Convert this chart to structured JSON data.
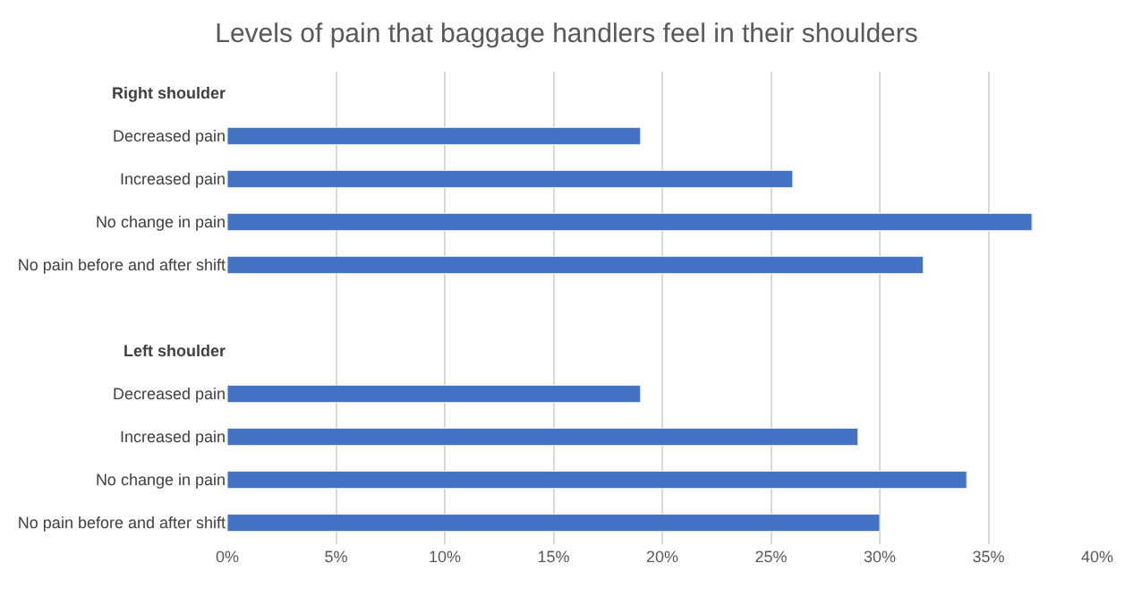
{
  "chart_data": {
    "type": "bar",
    "orientation": "horizontal",
    "title": "Levels of pain that baggage handlers feel in their shoulders",
    "categories": [
      "Right shoulder",
      "Decreased pain",
      "Increased pain",
      "No change in pain",
      "No pain before and after shift",
      null,
      "Left shoulder",
      "Decreased pain",
      "Increased pain",
      "No change in pain",
      "No pain before and after shift"
    ],
    "values": [
      null,
      19,
      26,
      37,
      32,
      null,
      null,
      19,
      29,
      34,
      30
    ],
    "color": "#4472c4",
    "xlim": [
      0,
      40
    ],
    "xticks": [
      {
        "value": 0,
        "label": "0%"
      },
      {
        "value": 5,
        "label": "5%"
      },
      {
        "value": 10,
        "label": "10%"
      },
      {
        "value": 15,
        "label": "15%"
      },
      {
        "value": 20,
        "label": "20%"
      },
      {
        "value": 25,
        "label": "25%"
      },
      {
        "value": 30,
        "label": "30%"
      },
      {
        "value": 35,
        "label": "35%"
      },
      {
        "value": 40,
        "label": "40%"
      }
    ],
    "grid": "x",
    "legend": false
  }
}
